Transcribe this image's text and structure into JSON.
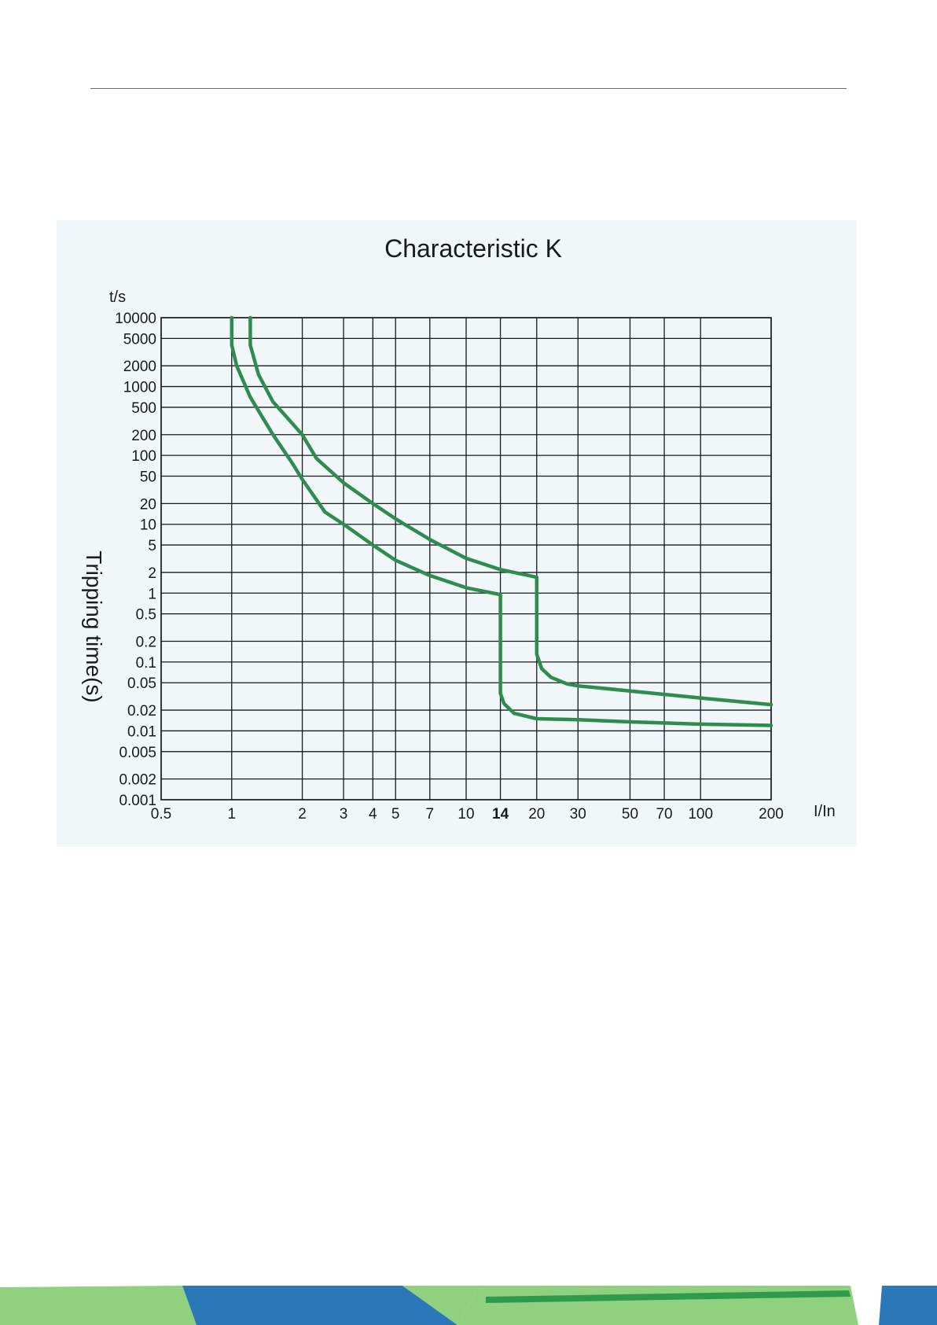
{
  "colors": {
    "curve": "#2f8c4f",
    "panel_background": "#f1f6f8",
    "grid": "#1a1a1a",
    "footer_light_green": "#8fd17f",
    "footer_blue": "#2a78b8",
    "footer_dark_green": "#2f9a4b"
  },
  "chart_data": {
    "type": "line",
    "title": "Characteristic K",
    "xlabel": "I/In",
    "ylabel": "Tripping time(s)",
    "y_unit": "t/s",
    "x_scale": "log",
    "y_scale": "log",
    "xlim": [
      0.5,
      200
    ],
    "ylim": [
      0.001,
      10000
    ],
    "grid": true,
    "legend": "none",
    "x_ticks": [
      0.5,
      1,
      2,
      3,
      4,
      5,
      7,
      10,
      14,
      20,
      30,
      50,
      70,
      100,
      200
    ],
    "x_tick_labels": [
      "0.5",
      "1",
      "2",
      "3",
      "4",
      "5",
      "7",
      "10",
      "14",
      "20",
      "30",
      "50",
      "70",
      "100",
      "200"
    ],
    "x_tick_bold": "14",
    "y_ticks": [
      0.001,
      0.002,
      0.005,
      0.01,
      0.02,
      0.05,
      0.1,
      0.2,
      0.5,
      1,
      2,
      5,
      10,
      20,
      50,
      100,
      200,
      500,
      1000,
      2000,
      5000,
      10000
    ],
    "y_tick_labels": [
      "0.001",
      "0.002",
      "0.005",
      "0.01",
      "0.02",
      "0.05",
      "0.1",
      "0.2",
      "0.5",
      "1",
      "2",
      "5",
      "10",
      "20",
      "50",
      "100",
      "200",
      "500",
      "1000",
      "2000",
      "5000",
      "10000"
    ],
    "series": [
      {
        "points": [
          [
            1.0,
            10000
          ],
          [
            1.0,
            4000
          ],
          [
            1.05,
            2000
          ],
          [
            1.2,
            700
          ],
          [
            1.5,
            200
          ],
          [
            1.8,
            80
          ],
          [
            2.0,
            45
          ],
          [
            2.5,
            15
          ],
          [
            3.0,
            10
          ],
          [
            4.0,
            5
          ],
          [
            5.0,
            3
          ],
          [
            7.0,
            1.8
          ],
          [
            10.0,
            1.2
          ],
          [
            14.0,
            0.95
          ],
          [
            14.0,
            0.035
          ],
          [
            14.5,
            0.025
          ],
          [
            16.0,
            0.018
          ],
          [
            20.0,
            0.015
          ],
          [
            30.0,
            0.0145
          ],
          [
            50.0,
            0.0135
          ],
          [
            100.0,
            0.0125
          ],
          [
            200.0,
            0.012
          ]
        ]
      },
      {
        "points": [
          [
            1.2,
            10000
          ],
          [
            1.2,
            4000
          ],
          [
            1.3,
            1500
          ],
          [
            1.5,
            600
          ],
          [
            1.8,
            300
          ],
          [
            2.0,
            200
          ],
          [
            2.3,
            90
          ],
          [
            3.0,
            40
          ],
          [
            4.0,
            20
          ],
          [
            5.0,
            12
          ],
          [
            7.0,
            6
          ],
          [
            10.0,
            3.2
          ],
          [
            14.0,
            2.2
          ],
          [
            20.0,
            1.7
          ],
          [
            20.0,
            0.13
          ],
          [
            21.0,
            0.08
          ],
          [
            23.0,
            0.06
          ],
          [
            27.0,
            0.048
          ],
          [
            30.0,
            0.045
          ],
          [
            50.0,
            0.038
          ],
          [
            100.0,
            0.03
          ],
          [
            200.0,
            0.024
          ]
        ]
      }
    ]
  }
}
